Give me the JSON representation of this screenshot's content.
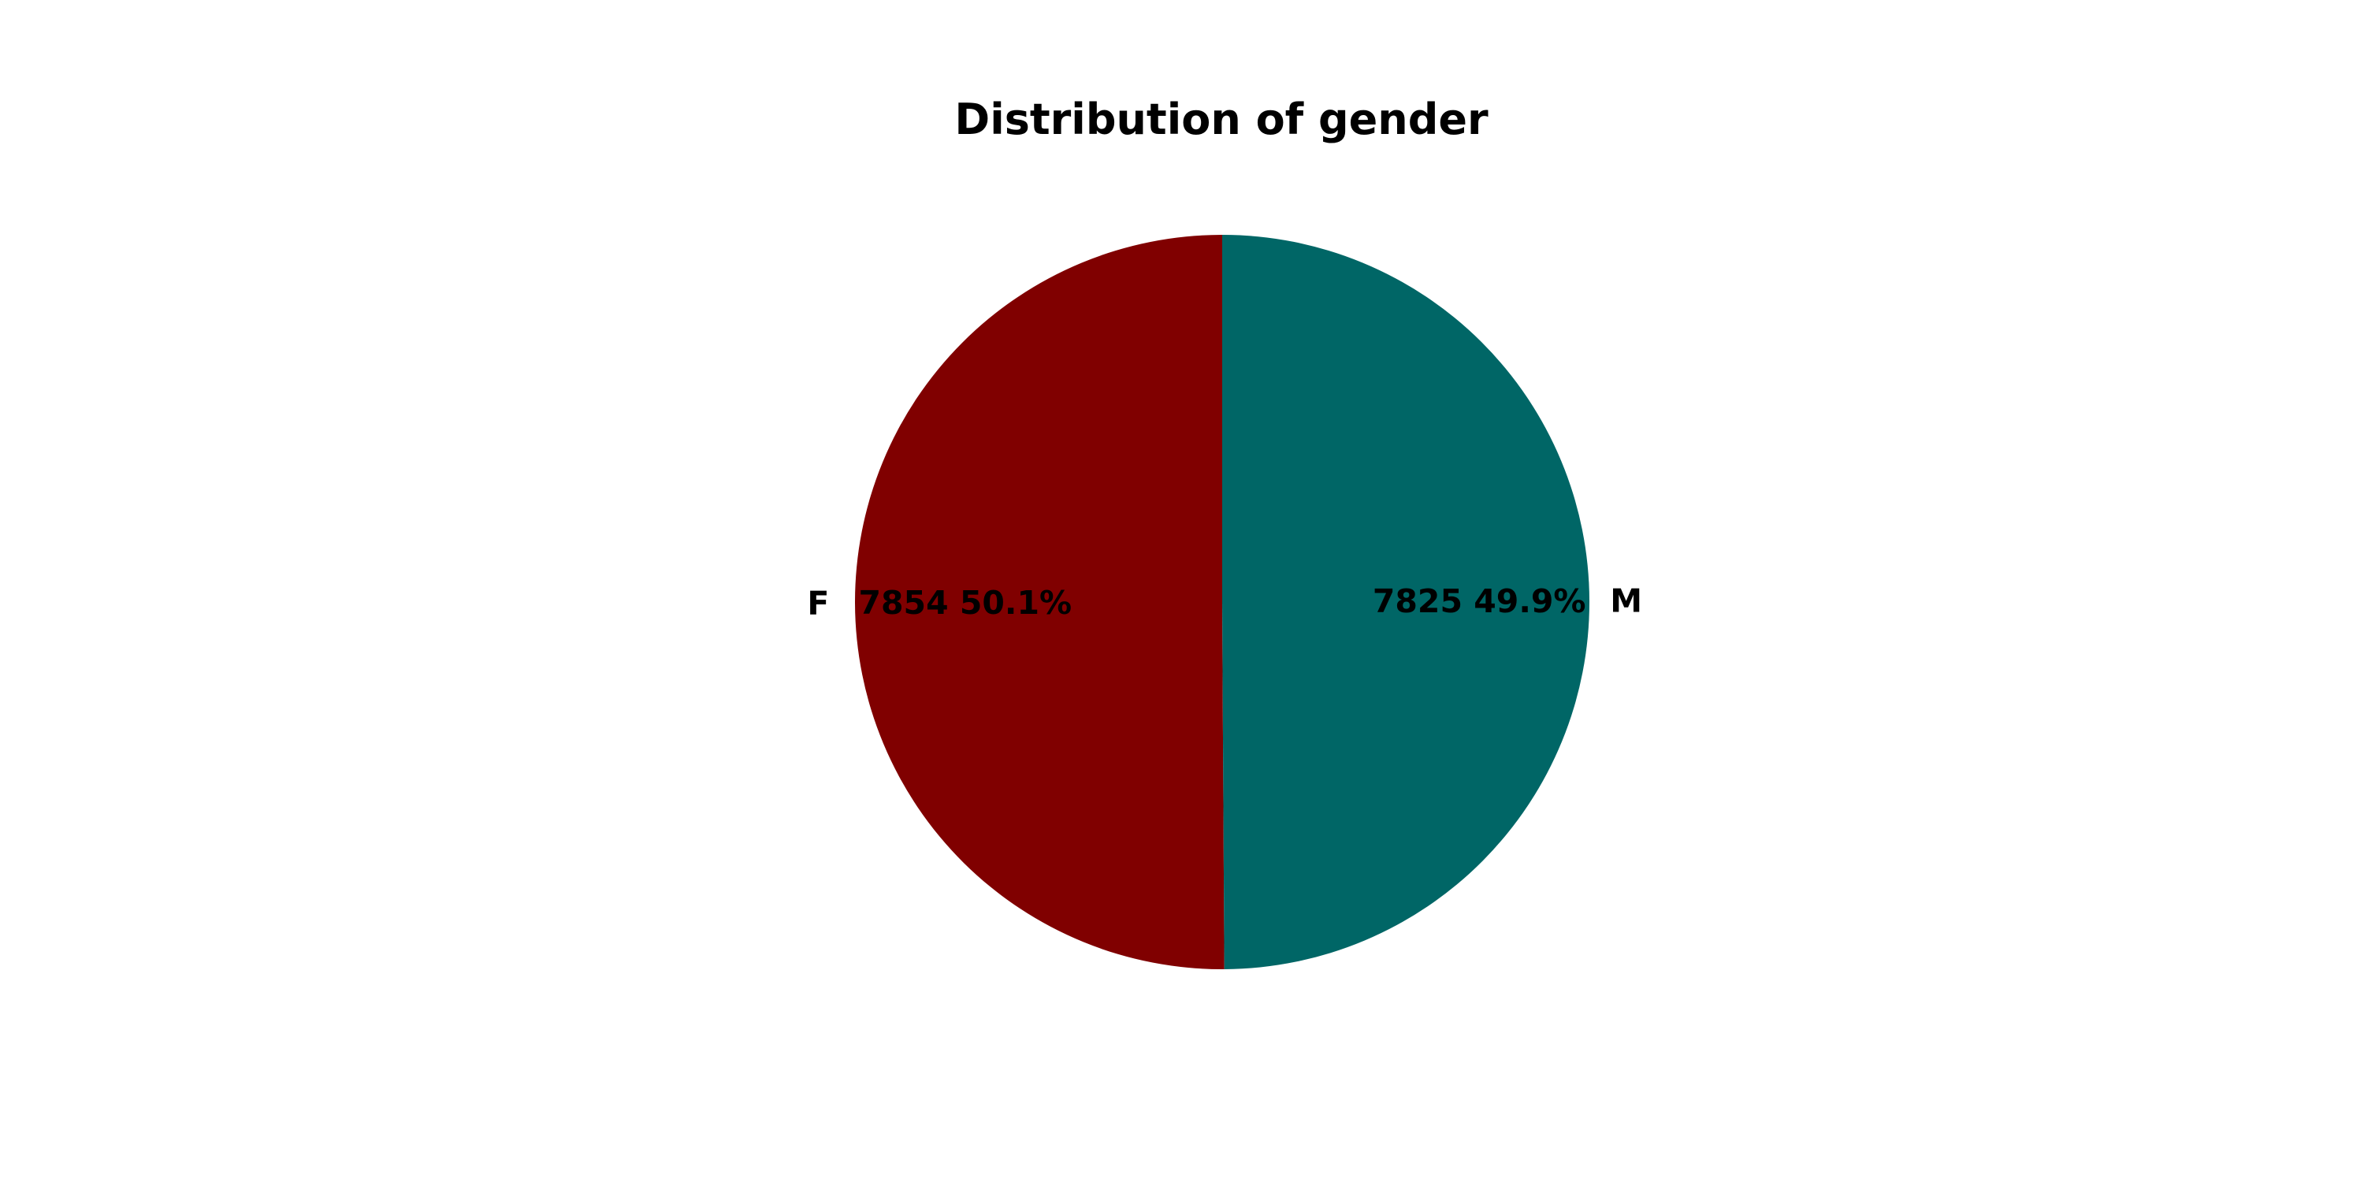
{
  "chart_data": {
    "type": "pie",
    "title": "Distribution of gender",
    "slices": [
      {
        "label": "F",
        "value": 7854,
        "percent": "50.1%",
        "display": "7854 50.1%",
        "color": "#800000"
      },
      {
        "label": "M",
        "value": 7825,
        "percent": "49.9%",
        "display": "7825 49.9%",
        "color": "#006666"
      }
    ],
    "legend": "none"
  }
}
